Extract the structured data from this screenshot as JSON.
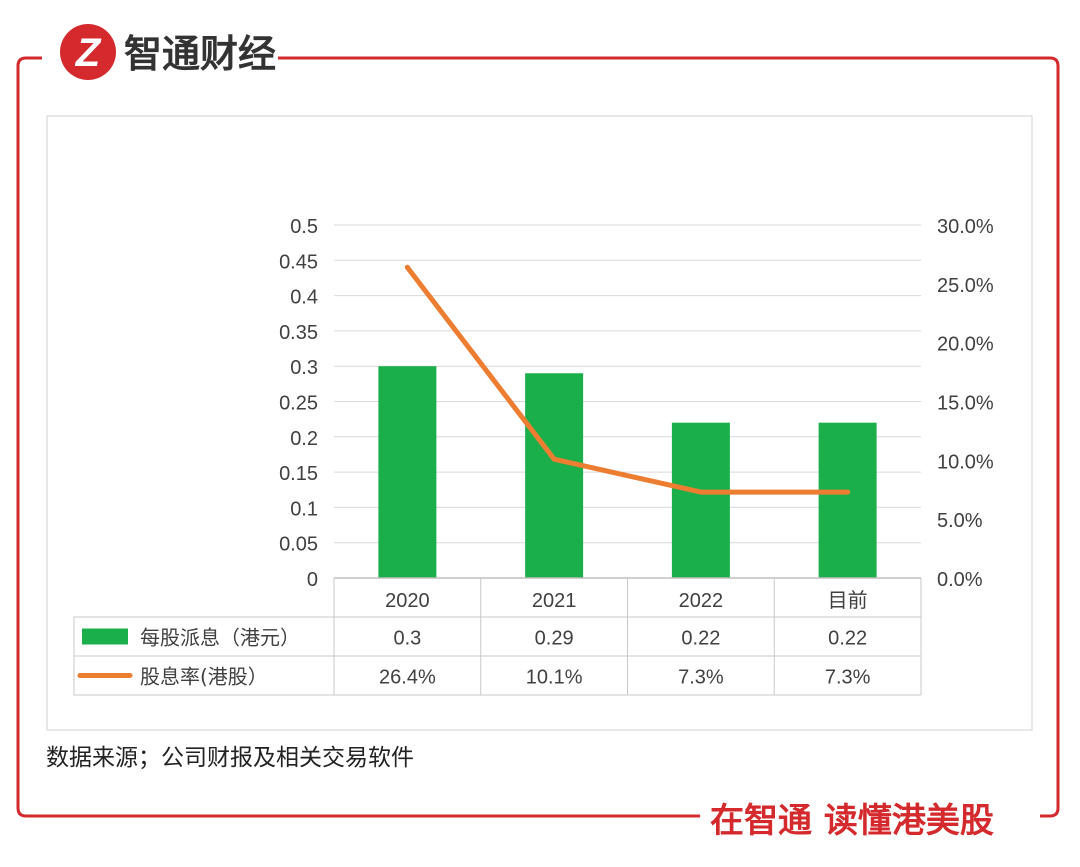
{
  "header": {
    "logo_glyph": "Z",
    "brand_name": "智通财经"
  },
  "footer": {
    "slogan": "在智通 读懂港美股"
  },
  "source_note": "数据来源；公司财报及相关交易软件",
  "colors": {
    "frame_red": "#d42a2d",
    "bar_green": "#1aaf4b",
    "line_orange": "#ed7d31"
  },
  "chart_data": {
    "type": "bar",
    "categories": [
      "2020",
      "2021",
      "2022",
      "目前"
    ],
    "series": [
      {
        "name": "每股派息（港元）",
        "type": "bar",
        "axis": "left",
        "values": [
          0.3,
          0.29,
          0.22,
          0.22
        ]
      },
      {
        "name": "股息率(港股）",
        "type": "line",
        "axis": "right",
        "values": [
          26.4,
          10.1,
          7.3,
          7.3
        ]
      }
    ],
    "y_left": {
      "range": [
        0,
        0.5
      ],
      "ticks": [
        "0",
        "0.05",
        "0.1",
        "0.15",
        "0.2",
        "0.25",
        "0.3",
        "0.35",
        "0.4",
        "0.45",
        "0.5"
      ]
    },
    "y_right": {
      "range": [
        0,
        30
      ],
      "ticks": [
        "0.0%",
        "5.0%",
        "10.0%",
        "15.0%",
        "20.0%",
        "25.0%",
        "30.0%"
      ]
    },
    "data_table": {
      "rows": [
        {
          "label": "每股派息（港元）",
          "cells": [
            "0.3",
            "0.29",
            "0.22",
            "0.22"
          ]
        },
        {
          "label": "股息率(港股）",
          "cells": [
            "26.4%",
            "10.1%",
            "7.3%",
            "7.3%"
          ]
        }
      ]
    },
    "grid": true
  }
}
